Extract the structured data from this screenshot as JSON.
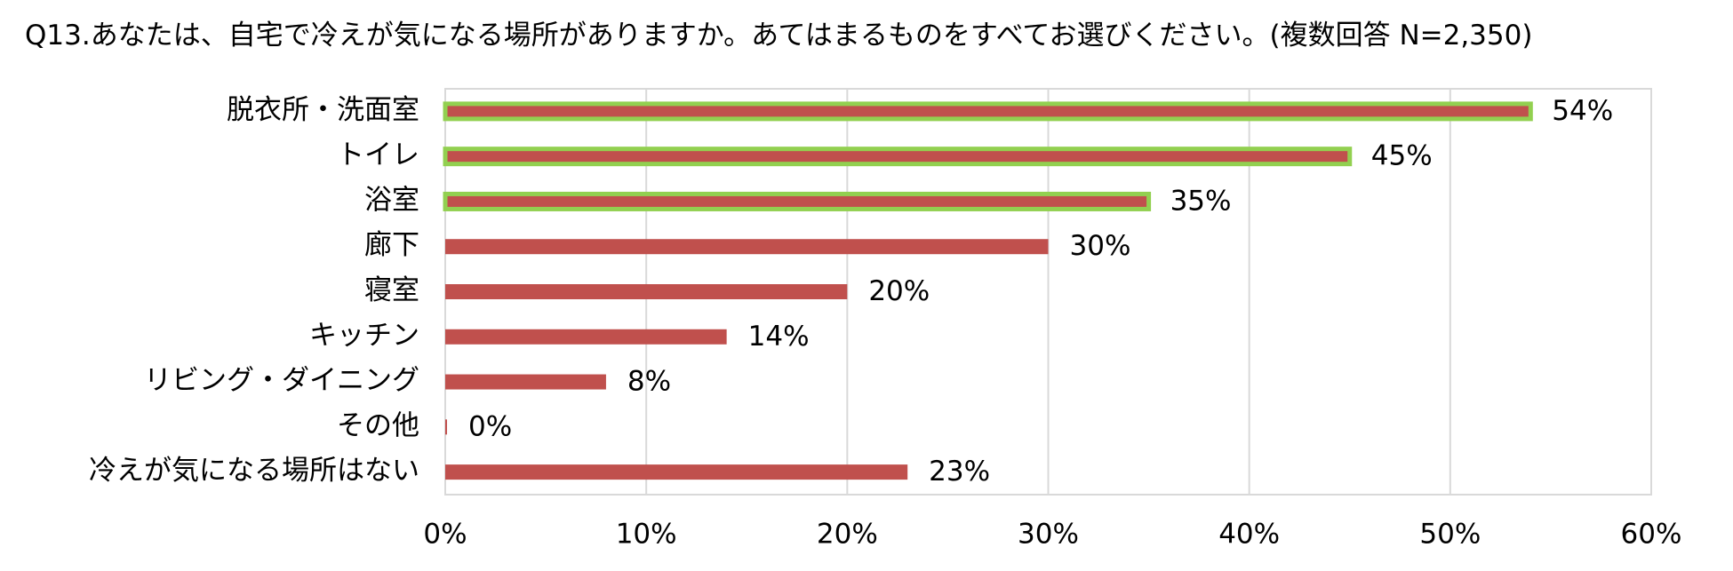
{
  "chart_data": {
    "type": "bar",
    "orientation": "horizontal",
    "title": "Q13.あなたは、自宅で冷えが気になる場所がありますか。あてはまるものをすべてお選びください。(複数回答 N=2,350)",
    "categories": [
      "脱衣所・洗面室",
      "トイレ",
      "浴室",
      "廊下",
      "寝室",
      "キッチン",
      "リビング・ダイニング",
      "その他",
      "冷えが気になる場所はない"
    ],
    "values": [
      54,
      45,
      35,
      30,
      20,
      14,
      8,
      0,
      23
    ],
    "value_labels": [
      "54%",
      "45%",
      "35%",
      "30%",
      "20%",
      "14%",
      "8%",
      "0%",
      "23%"
    ],
    "highlighted": [
      true,
      true,
      true,
      false,
      false,
      false,
      false,
      false,
      false
    ],
    "xlim": [
      0,
      60
    ],
    "x_ticks": [
      0,
      10,
      20,
      30,
      40,
      50,
      60
    ],
    "x_tick_labels": [
      "0%",
      "10%",
      "20%",
      "30%",
      "40%",
      "50%",
      "60%"
    ],
    "grid": true,
    "bar_color": "#c0504d",
    "highlight_outline_color": "#92d050",
    "grid_color": "#d9d9d9"
  }
}
